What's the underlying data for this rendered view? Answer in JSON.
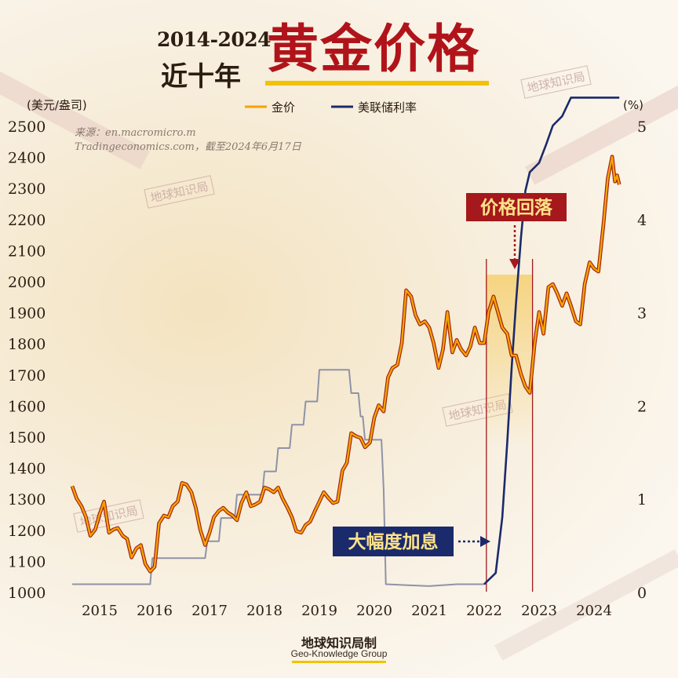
{
  "header": {
    "range": "2014-2024",
    "sub": "近十年",
    "title": "黄金价格"
  },
  "watermark": "地球知识局",
  "footer": {
    "brand": "地球知识局制",
    "brand_en": "Geo-Knowledge Group"
  },
  "colors": {
    "gold_line": "#f5a300",
    "gold_outline": "#9e1b12",
    "rate_line": "#1b2a6b",
    "accent_red": "#b0141a",
    "title_dark": "#2b1d12"
  },
  "chart_data": {
    "type": "line",
    "title": "黄金价格",
    "ylabel_left": "(美元/盎司)",
    "ylabel_right": "(%)",
    "source": [
      "来源：en.macromicro.m",
      "Tradingeconomics.com，截至2024年6月17日"
    ],
    "xlim": [
      2014.5,
      2024.5
    ],
    "ylim_left": [
      1000,
      2500
    ],
    "ylim_right": [
      0,
      5
    ],
    "x_ticks": [
      2015,
      2016,
      2017,
      2018,
      2019,
      2020,
      2021,
      2022,
      2023,
      2024
    ],
    "y_ticks_left": [
      1000,
      1100,
      1200,
      1300,
      1400,
      1500,
      1600,
      1700,
      1800,
      1900,
      2000,
      2100,
      2200,
      2300,
      2400,
      2500
    ],
    "y_ticks_right": [
      0,
      1,
      2,
      3,
      4,
      5
    ],
    "legend": {
      "position": "top-center"
    },
    "series": [
      {
        "name": "金价",
        "axis": "left",
        "color": "#f5a300",
        "points": [
          [
            2014.5,
            1340
          ],
          [
            2014.58,
            1300
          ],
          [
            2014.67,
            1275
          ],
          [
            2014.75,
            1240
          ],
          [
            2014.83,
            1180
          ],
          [
            2014.92,
            1200
          ],
          [
            2015.0,
            1250
          ],
          [
            2015.08,
            1290
          ],
          [
            2015.17,
            1190
          ],
          [
            2015.25,
            1200
          ],
          [
            2015.33,
            1205
          ],
          [
            2015.42,
            1180
          ],
          [
            2015.5,
            1170
          ],
          [
            2015.58,
            1110
          ],
          [
            2015.67,
            1140
          ],
          [
            2015.75,
            1150
          ],
          [
            2015.83,
            1090
          ],
          [
            2015.92,
            1065
          ],
          [
            2016.0,
            1080
          ],
          [
            2016.08,
            1220
          ],
          [
            2016.17,
            1245
          ],
          [
            2016.25,
            1240
          ],
          [
            2016.33,
            1275
          ],
          [
            2016.42,
            1290
          ],
          [
            2016.5,
            1350
          ],
          [
            2016.58,
            1345
          ],
          [
            2016.67,
            1320
          ],
          [
            2016.75,
            1270
          ],
          [
            2016.83,
            1200
          ],
          [
            2016.92,
            1150
          ],
          [
            2017.0,
            1190
          ],
          [
            2017.08,
            1240
          ],
          [
            2017.17,
            1260
          ],
          [
            2017.25,
            1270
          ],
          [
            2017.33,
            1255
          ],
          [
            2017.42,
            1245
          ],
          [
            2017.5,
            1230
          ],
          [
            2017.58,
            1285
          ],
          [
            2017.67,
            1320
          ],
          [
            2017.75,
            1275
          ],
          [
            2017.83,
            1280
          ],
          [
            2017.92,
            1290
          ],
          [
            2018.0,
            1335
          ],
          [
            2018.08,
            1330
          ],
          [
            2018.17,
            1320
          ],
          [
            2018.25,
            1335
          ],
          [
            2018.33,
            1300
          ],
          [
            2018.42,
            1270
          ],
          [
            2018.5,
            1240
          ],
          [
            2018.58,
            1195
          ],
          [
            2018.67,
            1190
          ],
          [
            2018.75,
            1215
          ],
          [
            2018.83,
            1225
          ],
          [
            2018.92,
            1260
          ],
          [
            2019.0,
            1290
          ],
          [
            2019.08,
            1320
          ],
          [
            2019.17,
            1300
          ],
          [
            2019.25,
            1285
          ],
          [
            2019.33,
            1290
          ],
          [
            2019.42,
            1390
          ],
          [
            2019.5,
            1415
          ],
          [
            2019.58,
            1510
          ],
          [
            2019.67,
            1500
          ],
          [
            2019.75,
            1495
          ],
          [
            2019.83,
            1465
          ],
          [
            2019.92,
            1480
          ],
          [
            2020.0,
            1560
          ],
          [
            2020.08,
            1600
          ],
          [
            2020.17,
            1580
          ],
          [
            2020.25,
            1690
          ],
          [
            2020.33,
            1720
          ],
          [
            2020.42,
            1730
          ],
          [
            2020.5,
            1800
          ],
          [
            2020.58,
            1970
          ],
          [
            2020.67,
            1950
          ],
          [
            2020.75,
            1890
          ],
          [
            2020.83,
            1860
          ],
          [
            2020.92,
            1870
          ],
          [
            2021.0,
            1850
          ],
          [
            2021.08,
            1800
          ],
          [
            2021.17,
            1720
          ],
          [
            2021.25,
            1780
          ],
          [
            2021.33,
            1900
          ],
          [
            2021.42,
            1770
          ],
          [
            2021.5,
            1810
          ],
          [
            2021.58,
            1780
          ],
          [
            2021.67,
            1760
          ],
          [
            2021.75,
            1790
          ],
          [
            2021.83,
            1850
          ],
          [
            2021.92,
            1800
          ],
          [
            2022.0,
            1800
          ],
          [
            2022.08,
            1900
          ],
          [
            2022.17,
            1950
          ],
          [
            2022.25,
            1900
          ],
          [
            2022.33,
            1850
          ],
          [
            2022.42,
            1830
          ],
          [
            2022.5,
            1760
          ],
          [
            2022.58,
            1760
          ],
          [
            2022.67,
            1700
          ],
          [
            2022.75,
            1660
          ],
          [
            2022.83,
            1640
          ],
          [
            2022.92,
            1800
          ],
          [
            2023.0,
            1900
          ],
          [
            2023.08,
            1830
          ],
          [
            2023.17,
            1980
          ],
          [
            2023.25,
            1990
          ],
          [
            2023.33,
            1960
          ],
          [
            2023.42,
            1920
          ],
          [
            2023.5,
            1960
          ],
          [
            2023.58,
            1920
          ],
          [
            2023.67,
            1870
          ],
          [
            2023.75,
            1860
          ],
          [
            2023.83,
            1990
          ],
          [
            2023.92,
            2060
          ],
          [
            2024.0,
            2040
          ],
          [
            2024.08,
            2030
          ],
          [
            2024.17,
            2180
          ],
          [
            2024.25,
            2330
          ],
          [
            2024.33,
            2400
          ],
          [
            2024.38,
            2320
          ],
          [
            2024.42,
            2340
          ],
          [
            2024.46,
            2310
          ]
        ]
      },
      {
        "name": "美联储利率",
        "axis": "right",
        "color": "#1b2a6b",
        "points": [
          [
            2014.5,
            0.08
          ],
          [
            2015.0,
            0.08
          ],
          [
            2015.92,
            0.08
          ],
          [
            2015.96,
            0.36
          ],
          [
            2016.92,
            0.36
          ],
          [
            2016.96,
            0.54
          ],
          [
            2017.17,
            0.54
          ],
          [
            2017.21,
            0.79
          ],
          [
            2017.46,
            0.79
          ],
          [
            2017.5,
            1.04
          ],
          [
            2017.96,
            1.04
          ],
          [
            2018.0,
            1.29
          ],
          [
            2018.21,
            1.29
          ],
          [
            2018.25,
            1.54
          ],
          [
            2018.46,
            1.54
          ],
          [
            2018.5,
            1.79
          ],
          [
            2018.71,
            1.79
          ],
          [
            2018.75,
            2.04
          ],
          [
            2018.96,
            2.04
          ],
          [
            2019.0,
            2.38
          ],
          [
            2019.54,
            2.38
          ],
          [
            2019.58,
            2.13
          ],
          [
            2019.71,
            2.13
          ],
          [
            2019.75,
            1.88
          ],
          [
            2019.79,
            1.88
          ],
          [
            2019.83,
            1.63
          ],
          [
            2020.13,
            1.63
          ],
          [
            2020.17,
            1.1
          ],
          [
            2020.21,
            0.08
          ],
          [
            2021.0,
            0.06
          ],
          [
            2021.5,
            0.08
          ],
          [
            2022.0,
            0.08
          ],
          [
            2022.21,
            0.2
          ],
          [
            2022.33,
            0.8
          ],
          [
            2022.42,
            1.6
          ],
          [
            2022.5,
            2.4
          ],
          [
            2022.58,
            3.1
          ],
          [
            2022.67,
            3.8
          ],
          [
            2022.75,
            4.3
          ],
          [
            2022.83,
            4.5
          ],
          [
            2023.0,
            4.6
          ],
          [
            2023.13,
            4.8
          ],
          [
            2023.25,
            5.0
          ],
          [
            2023.42,
            5.1
          ],
          [
            2023.58,
            5.3
          ],
          [
            2024.46,
            5.3
          ]
        ]
      }
    ],
    "annotations": [
      {
        "text": "价格回落",
        "x": 2022.4
      },
      {
        "text": "大幅度加息",
        "x": 2022.0
      }
    ]
  }
}
